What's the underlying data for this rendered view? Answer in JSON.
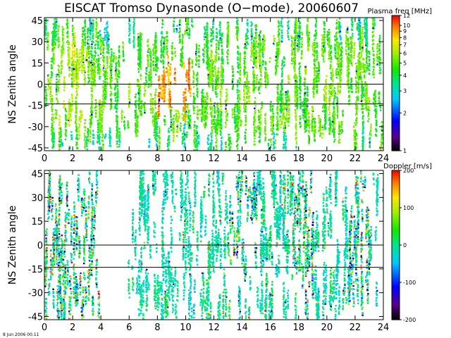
{
  "title": "EISCAT Tromso Dynasonde (O−mode),  20060607",
  "timestamp": "8 Jun 2006 00:11",
  "chart_data": [
    {
      "type": "scatter",
      "panel": "top",
      "ylabel": "NS Zenith angle",
      "xlabel": "",
      "xlim": [
        0,
        24
      ],
      "ylim": [
        -47,
        47
      ],
      "xticks": [
        "0",
        "2",
        "4",
        "6",
        "8",
        "10",
        "12",
        "14",
        "16",
        "18",
        "20",
        "22",
        "24"
      ],
      "yticks": [
        "45",
        "30",
        "15",
        "0",
        "-15",
        "-30",
        "-45"
      ],
      "reference_lines_y": [
        0,
        -14
      ],
      "colorbar": {
        "label": "Plasma freq [MHz]",
        "scale": "log",
        "range": [
          1,
          12
        ],
        "ticks": [
          "12",
          "10",
          "9",
          "8",
          "7",
          "6",
          "5",
          "4",
          "3",
          "2",
          "1"
        ],
        "ticks_value": [
          12,
          10,
          9,
          8,
          7,
          6,
          5,
          4,
          3,
          2,
          1
        ]
      }
    },
    {
      "type": "scatter",
      "panel": "bottom",
      "ylabel": "NS Zenith angle",
      "xlabel": "",
      "xlim": [
        0,
        24
      ],
      "ylim": [
        -47,
        47
      ],
      "xticks": [
        "0",
        "2",
        "4",
        "6",
        "8",
        "10",
        "12",
        "14",
        "16",
        "18",
        "20",
        "22",
        "24"
      ],
      "yticks": [
        "45",
        "30",
        "15",
        "0",
        "-15",
        "-30",
        "-45"
      ],
      "reference_lines_y": [
        0,
        -14
      ],
      "colorbar": {
        "label": "Doppler [m/s]",
        "scale": "linear",
        "range": [
          -200,
          200
        ],
        "ticks": [
          "200",
          "100",
          "0",
          "-100",
          "-200"
        ],
        "ticks_value": [
          200,
          100,
          0,
          -100,
          -200
        ]
      }
    }
  ]
}
